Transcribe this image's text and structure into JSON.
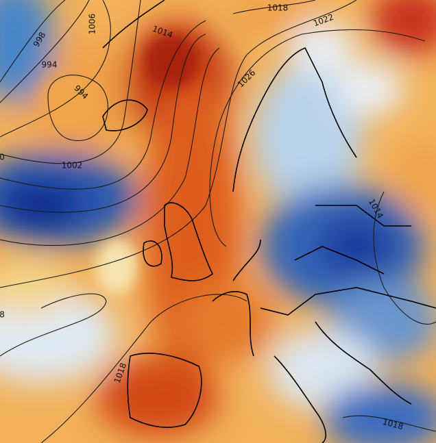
{
  "map": {
    "isobar_labels": [
      998,
      994,
      1006,
      1014,
      1018,
      1022,
      1026,
      994,
      1002,
      1014,
      1018,
      1018,
      0,
      8
    ]
  }
}
